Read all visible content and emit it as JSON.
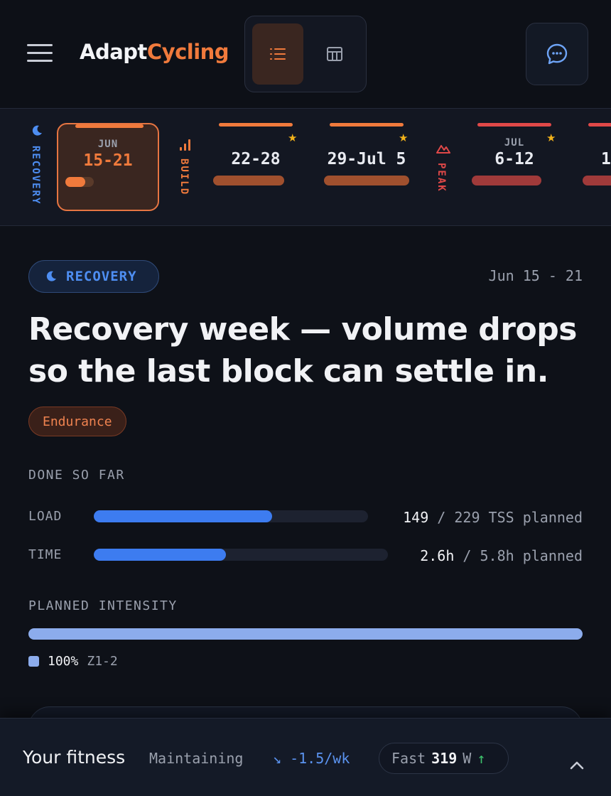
{
  "header": {
    "logo_part1": "Adapt",
    "logo_part2": "Cycling",
    "menu_icon": "hamburger-icon",
    "view_list_icon": "list-icon",
    "view_table_icon": "table-icon",
    "chat_icon": "chat-icon"
  },
  "strip": {
    "phases": [
      {
        "label": "RECOVERY",
        "icon": "moon-icon",
        "color": "#4e8ef2"
      },
      {
        "label": "BUILD",
        "icon": "bars-icon",
        "color": "#f07a3c"
      },
      {
        "label": "PEAK",
        "icon": "mountain-icon",
        "color": "#e04848"
      }
    ],
    "weeks": [
      {
        "month": "JUN",
        "range": "15-21",
        "active": true,
        "starred": false
      },
      {
        "month": "",
        "range": "22-28",
        "active": false,
        "starred": true
      },
      {
        "month": "",
        "range": "29-Jul 5",
        "active": false,
        "starred": true
      },
      {
        "month": "JUL",
        "range": "6-12",
        "active": false,
        "starred": true
      },
      {
        "month": "",
        "range": "1",
        "active": false,
        "starred": false
      }
    ]
  },
  "main": {
    "phase_badge": "RECOVERY",
    "date_range": "Jun 15 - 21",
    "headline": "Recovery week — volume drops so the last block can settle in.",
    "focus_tag": "Endurance",
    "done_title": "DONE SO FAR",
    "metrics": [
      {
        "label": "LOAD",
        "done": "149",
        "rest": " / 229 TSS planned",
        "fraction": 0.65
      },
      {
        "label": "TIME",
        "done": "2.6h",
        "rest": " / 5.8h planned",
        "fraction": 0.45
      }
    ],
    "intensity_title": "PLANNED INTENSITY",
    "intensity_pct": "100%",
    "intensity_zone": "Z1-2"
  },
  "fitness": {
    "title": "Your fitness",
    "status": "Maintaining",
    "trend": "↘ -1.5/wk",
    "fast_label": "Fast",
    "fast_value": "319",
    "fast_unit": "W",
    "fast_arrow": "↑"
  }
}
